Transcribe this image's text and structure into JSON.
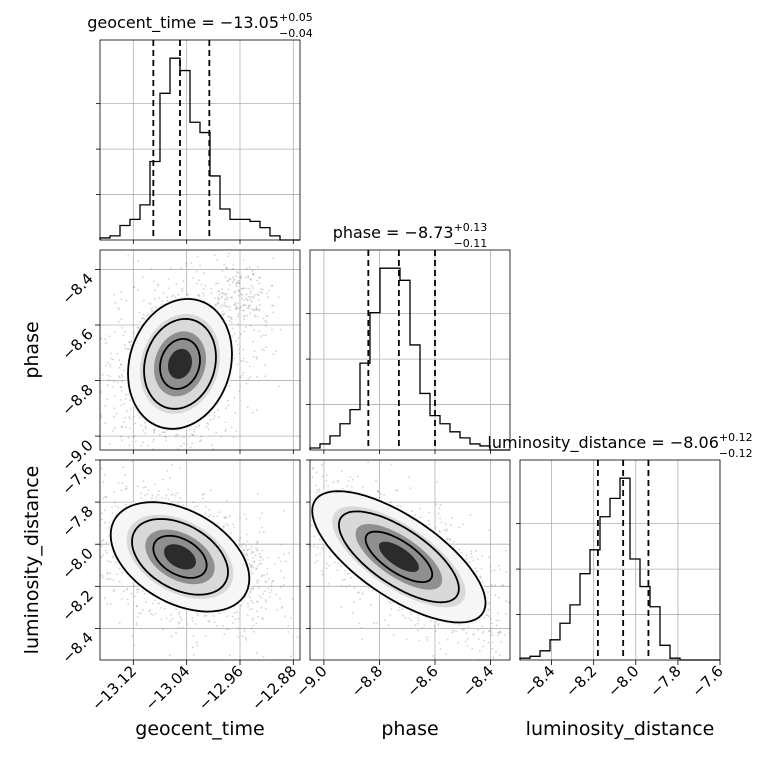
{
  "chart_data": {
    "type": "corner",
    "parameters": [
      {
        "name": "geocent_time",
        "axis_label": "geocent_time",
        "title": {
          "prefix": "geocent_time = ",
          "median": "−13.05",
          "plus": "+0.05",
          "minus": "−0.04"
        },
        "range": [
          -13.17,
          -12.87
        ],
        "ticks": [
          -13.12,
          -13.04,
          -12.96,
          -12.88
        ],
        "tick_labels": [
          "−13.12",
          "−13.04",
          "−12.96",
          "−12.88"
        ],
        "quantiles": [
          -13.09,
          -13.05,
          -13.006
        ],
        "hist_bins": [
          -13.17,
          -13.155,
          -13.14,
          -13.125,
          -13.11,
          -13.095,
          -13.08,
          -13.065,
          -13.05,
          -13.035,
          -13.02,
          -13.005,
          -12.99,
          -12.975,
          -12.96,
          -12.945,
          -12.93,
          -12.915,
          -12.9,
          -12.885,
          -12.87
        ],
        "hist_counts": [
          0.01,
          0.02,
          0.07,
          0.1,
          0.17,
          0.38,
          0.71,
          0.88,
          0.82,
          0.57,
          0.52,
          0.31,
          0.15,
          0.1,
          0.1,
          0.09,
          0.06,
          0.02,
          0.0,
          0.0
        ]
      },
      {
        "name": "phase",
        "axis_label": "phase",
        "title": {
          "prefix": "phase = ",
          "median": "−8.73",
          "plus": "+0.13",
          "minus": "−0.11"
        },
        "range": [
          -9.05,
          -8.33
        ],
        "ticks": [
          -9.0,
          -8.8,
          -8.6,
          -8.4
        ],
        "tick_labels": [
          "−9.0",
          "−8.8",
          "−8.6",
          "−8.4"
        ],
        "quantiles": [
          -8.84,
          -8.73,
          -8.6
        ],
        "hist_bins": [
          -9.05,
          -9.014,
          -8.978,
          -8.942,
          -8.906,
          -8.87,
          -8.834,
          -8.798,
          -8.762,
          -8.726,
          -8.69,
          -8.654,
          -8.618,
          -8.582,
          -8.546,
          -8.51,
          -8.474,
          -8.438,
          -8.402,
          -8.366,
          -8.33
        ],
        "hist_counts": [
          0.01,
          0.03,
          0.07,
          0.13,
          0.2,
          0.43,
          0.68,
          0.9,
          0.9,
          0.84,
          0.52,
          0.28,
          0.17,
          0.13,
          0.09,
          0.06,
          0.03,
          0.02,
          0.0,
          0.0
        ]
      },
      {
        "name": "luminosity_distance",
        "axis_label": "luminosity_distance",
        "title": {
          "prefix": "luminosity_distance = ",
          "median": "−8.06",
          "plus": "+0.12",
          "minus": "−0.12"
        },
        "range": [
          -8.55,
          -7.6
        ],
        "ticks": [
          -8.4,
          -8.2,
          -8.0,
          -7.8,
          -7.6
        ],
        "tick_labels": [
          "−8.4",
          "−8.2",
          "−8.0",
          "−7.8",
          "−7.6"
        ],
        "y_tick_labels": [
          "−8.4",
          "−8.2",
          "−8.0",
          "−7.8",
          "−7.6"
        ],
        "quantiles": [
          -8.18,
          -8.06,
          -7.94
        ],
        "hist_bins": [
          -8.55,
          -8.5025,
          -8.455,
          -8.4075,
          -8.36,
          -8.3125,
          -8.265,
          -8.2175,
          -8.17,
          -8.1225,
          -8.075,
          -8.0275,
          -7.98,
          -7.9325,
          -7.885,
          -7.8375,
          -7.79,
          -7.7425,
          -7.695,
          -7.6475,
          -7.6
        ],
        "hist_counts": [
          0.01,
          0.02,
          0.05,
          0.11,
          0.2,
          0.3,
          0.47,
          0.6,
          0.78,
          0.88,
          0.99,
          0.55,
          0.4,
          0.29,
          0.08,
          0.01,
          0.0,
          0.0,
          0.0,
          0.0
        ]
      }
    ],
    "pairs": [
      {
        "x": "geocent_time",
        "y": "phase",
        "mean": [
          -13.05,
          -8.74
        ],
        "tail": {
          "mean": [
            -12.955,
            -8.5
          ],
          "spread": [
            0.025,
            0.06
          ],
          "weight": 0.12
        },
        "sd": [
          0.03,
          0.09
        ],
        "corr": 0.15
      },
      {
        "x": "geocent_time",
        "y": "luminosity_distance",
        "mean": [
          -13.05,
          -8.06
        ],
        "tail": {
          "mean": [
            -12.96,
            -8.1
          ],
          "spread": [
            0.02,
            0.05
          ],
          "weight": 0.08
        },
        "sd": [
          0.04,
          0.1
        ],
        "corr": -0.4
      },
      {
        "x": "phase",
        "y": "luminosity_distance",
        "mean": [
          -8.73,
          -8.06
        ],
        "sd": [
          0.12,
          0.12
        ],
        "corr": -0.7
      }
    ],
    "levels": [
      "1-sigma",
      "2-sigma",
      "3-sigma"
    ],
    "grid": true,
    "colors": {
      "line": "#000000",
      "points": "#7f7f7f",
      "grid": "#b0b0b0",
      "quantile": "#000000"
    }
  }
}
